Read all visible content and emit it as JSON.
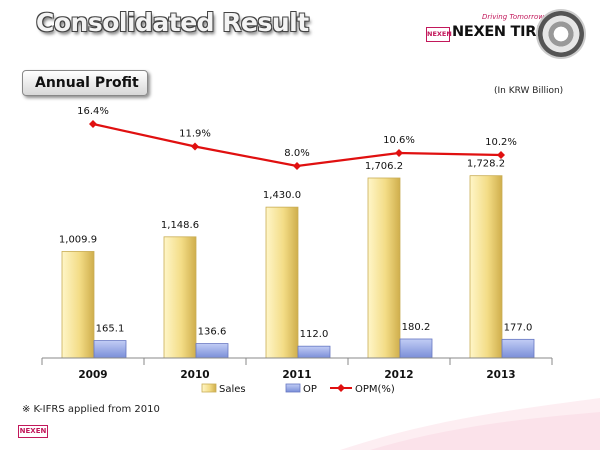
{
  "header": {
    "title": "Consolidated Result",
    "brand_tagline": "Driving Tomorrow",
    "brand_mark": "NEXEN",
    "brand_name": "NEXEN TIRE"
  },
  "section_label": "Annual  Profit",
  "unit_note": "(In KRW Billion)",
  "footnote": "※ K-IFRS applied from 2010",
  "footer_mark": "NEXEN",
  "colors": {
    "sales_bar": "#f3dc86",
    "op_bar": "#8e9fe0",
    "opm_line": "#e01010",
    "brand": "#c2185b"
  },
  "chart_data": {
    "type": "bar",
    "categories": [
      "2009",
      "2010",
      "2011",
      "2012",
      "2013"
    ],
    "series": [
      {
        "name": "Sales",
        "type": "bar",
        "values": [
          1009.9,
          1148.6,
          1430.0,
          1706.2,
          1728.2
        ],
        "labels": [
          "1,009.9",
          "1,148.6",
          "1,430.0",
          "1,706.2",
          "1,728.2"
        ]
      },
      {
        "name": "OP",
        "type": "bar",
        "values": [
          165.1,
          136.6,
          112.0,
          180.2,
          177.0
        ],
        "labels": [
          "165.1",
          "136.6",
          "112.0",
          "180.2",
          "177.0"
        ]
      },
      {
        "name": "OPM(%)",
        "type": "line",
        "values": [
          16.4,
          11.9,
          8.0,
          10.6,
          10.2
        ],
        "labels": [
          "16.4%",
          "11.9%",
          "8.0%",
          "10.6%",
          "10.2%"
        ]
      }
    ],
    "legend": [
      "Sales",
      "OP",
      "OPM(%)"
    ],
    "legend_position": "bottom",
    "grid": false
  }
}
